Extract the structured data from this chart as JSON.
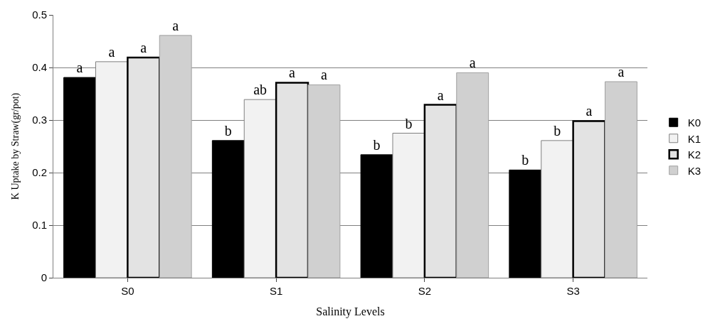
{
  "chart_data": {
    "type": "bar",
    "xlabel": "Salinity Levels",
    "ylabel": "K Uptake by Straw(gr/pot)",
    "categories": [
      "S0",
      "S1",
      "S2",
      "S3"
    ],
    "series": [
      {
        "name": "K0",
        "color": "#000000",
        "values": [
          0.381,
          0.261,
          0.234,
          0.205
        ],
        "value_labels": [
          "a",
          "b",
          "b",
          "b"
        ]
      },
      {
        "name": "K1",
        "color": "#f2f2f2",
        "values": [
          0.411,
          0.339,
          0.275,
          0.261
        ],
        "value_labels": [
          "a",
          "ab",
          "b",
          "b"
        ]
      },
      {
        "name": "K2",
        "color": "#e3e3e3",
        "values": [
          0.419,
          0.371,
          0.329,
          0.298
        ],
        "value_labels": [
          "a",
          "a",
          "a",
          "a"
        ]
      },
      {
        "name": "K3",
        "color": "#d0d0d0",
        "values": [
          0.461,
          0.367,
          0.39,
          0.373
        ],
        "value_labels": [
          "a",
          "a",
          "a",
          "a"
        ]
      }
    ],
    "ylim": [
      0,
      0.5
    ],
    "yticks": [
      0,
      0.1,
      0.2,
      0.3,
      0.4,
      0.5
    ],
    "grid": "y",
    "legend": "right"
  }
}
